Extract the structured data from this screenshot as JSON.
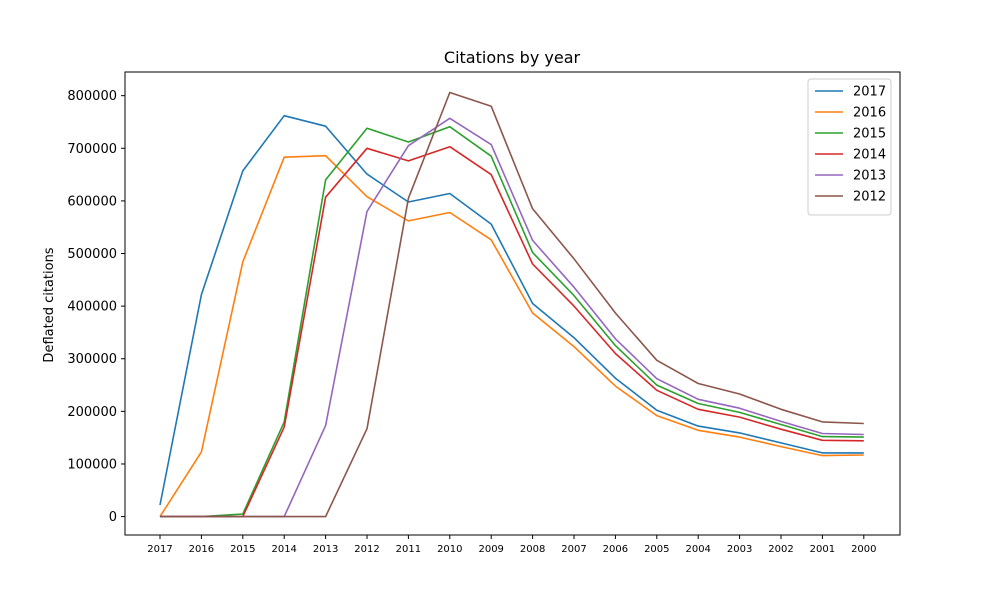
{
  "chart_data": {
    "type": "line",
    "title": "Citations by year",
    "xlabel": "",
    "ylabel": "Deflated citations",
    "categories": [
      "2017",
      "2016",
      "2015",
      "2014",
      "2013",
      "2012",
      "2011",
      "2010",
      "2009",
      "2008",
      "2007",
      "2006",
      "2005",
      "2004",
      "2003",
      "2002",
      "2001",
      "2000"
    ],
    "ylim": [
      -35000,
      845000
    ],
    "yticks": [
      0,
      100000,
      200000,
      300000,
      400000,
      500000,
      600000,
      700000,
      800000
    ],
    "ytick_labels": [
      "0",
      "100000",
      "200000",
      "300000",
      "400000",
      "500000",
      "600000",
      "700000",
      "800000"
    ],
    "legend_position": "top-right",
    "grid": false,
    "series": [
      {
        "name": "2017",
        "color": "#1f77b4",
        "values": [
          22000,
          422000,
          657000,
          762000,
          742000,
          651000,
          598000,
          614000,
          556000,
          405000,
          340000,
          263000,
          202000,
          172000,
          159000,
          140000,
          121000,
          121000
        ]
      },
      {
        "name": "2016",
        "color": "#ff7f0e",
        "values": [
          0,
          123000,
          484000,
          683000,
          686000,
          608000,
          562000,
          578000,
          526000,
          387000,
          323000,
          248000,
          192000,
          164000,
          151000,
          133000,
          116000,
          117000
        ]
      },
      {
        "name": "2015",
        "color": "#2ca02c",
        "values": [
          0,
          0,
          5000,
          180000,
          640000,
          738000,
          712000,
          741000,
          685000,
          502000,
          420000,
          325000,
          250000,
          215000,
          198000,
          175000,
          152000,
          151000
        ]
      },
      {
        "name": "2014",
        "color": "#d62728",
        "values": [
          0,
          0,
          0,
          170000,
          607000,
          700000,
          676000,
          703000,
          650000,
          480000,
          400000,
          310000,
          240000,
          204000,
          189000,
          166000,
          145000,
          144000
        ]
      },
      {
        "name": "2013",
        "color": "#9467bd",
        "values": [
          0,
          0,
          0,
          0,
          173000,
          580000,
          705000,
          757000,
          707000,
          525000,
          436000,
          338000,
          262000,
          223000,
          206000,
          181000,
          158000,
          156000
        ]
      },
      {
        "name": "2012",
        "color": "#8c564b",
        "values": [
          0,
          0,
          0,
          0,
          0,
          167000,
          605000,
          806000,
          780000,
          585000,
          490000,
          387000,
          297000,
          253000,
          233000,
          204000,
          180000,
          177000
        ]
      }
    ]
  }
}
